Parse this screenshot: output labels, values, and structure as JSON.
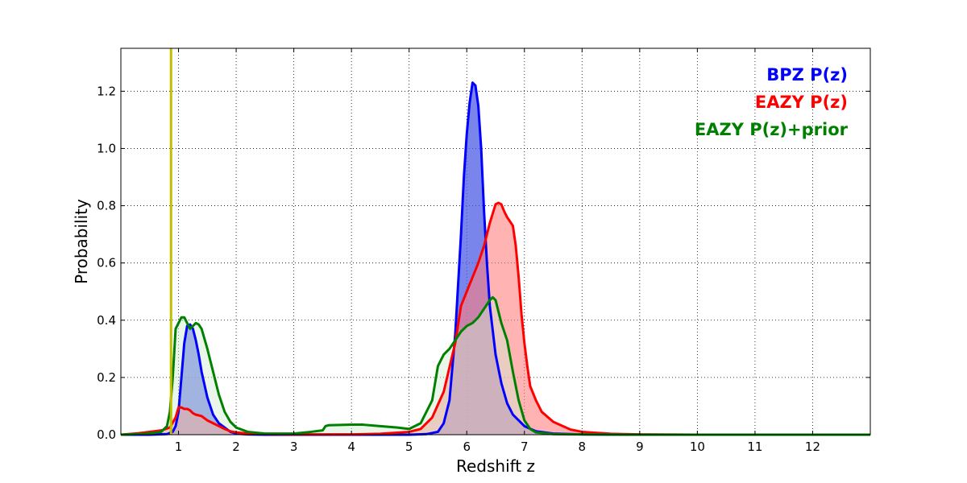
{
  "chart_data": {
    "type": "area",
    "title": "",
    "xlabel": "Redshift z",
    "ylabel": "Probability",
    "xlim": [
      0,
      13
    ],
    "ylim": [
      0,
      1.35
    ],
    "grid": true,
    "legend_position": "top-right",
    "x_ticks": [
      {
        "value": 1,
        "label": "1"
      },
      {
        "value": 2,
        "label": "2"
      },
      {
        "value": 3,
        "label": "3"
      },
      {
        "value": 4,
        "label": "4"
      },
      {
        "value": 5,
        "label": "5"
      },
      {
        "value": 6,
        "label": "6"
      },
      {
        "value": 7,
        "label": "7"
      },
      {
        "value": 8,
        "label": "8"
      },
      {
        "value": 9,
        "label": "9"
      },
      {
        "value": 10,
        "label": "10"
      },
      {
        "value": 11,
        "label": "11"
      },
      {
        "value": 12,
        "label": "12"
      }
    ],
    "y_ticks": [
      {
        "value": 0.0,
        "label": "0.0"
      },
      {
        "value": 0.2,
        "label": "0.2"
      },
      {
        "value": 0.4,
        "label": "0.4"
      },
      {
        "value": 0.6,
        "label": "0.6"
      },
      {
        "value": 0.8,
        "label": "0.8"
      },
      {
        "value": 1.0,
        "label": "1.0"
      },
      {
        "value": 1.2,
        "label": "1.2"
      }
    ],
    "vertical_line": {
      "x": 0.87,
      "color": "#bfbf00"
    },
    "series": [
      {
        "name": "BPZ P(z)",
        "color": "#0000ff",
        "fill": "#4d5ce6",
        "fill_opacity": 0.75,
        "x": [
          0,
          0.5,
          0.8,
          0.9,
          0.95,
          1.0,
          1.05,
          1.1,
          1.15,
          1.2,
          1.25,
          1.3,
          1.35,
          1.4,
          1.5,
          1.6,
          1.7,
          1.8,
          1.9,
          2.0,
          2.2,
          2.5,
          3.0,
          4.0,
          5.0,
          5.3,
          5.5,
          5.6,
          5.7,
          5.8,
          5.9,
          5.95,
          6.0,
          6.05,
          6.1,
          6.15,
          6.2,
          6.25,
          6.3,
          6.35,
          6.4,
          6.5,
          6.6,
          6.7,
          6.8,
          7.0,
          7.2,
          7.5,
          8.0,
          9.0,
          10.0,
          11.0,
          12.0,
          13.0
        ],
        "y": [
          0,
          0,
          0.002,
          0.01,
          0.03,
          0.08,
          0.2,
          0.32,
          0.38,
          0.385,
          0.37,
          0.33,
          0.28,
          0.22,
          0.13,
          0.07,
          0.04,
          0.025,
          0.01,
          0.004,
          0.001,
          0,
          0,
          0,
          0,
          0.002,
          0.01,
          0.04,
          0.12,
          0.35,
          0.7,
          0.9,
          1.05,
          1.16,
          1.23,
          1.22,
          1.15,
          1.0,
          0.78,
          0.6,
          0.45,
          0.28,
          0.18,
          0.11,
          0.07,
          0.03,
          0.012,
          0.004,
          0.001,
          0,
          0,
          0,
          0,
          0
        ]
      },
      {
        "name": "EAZY P(z)",
        "color": "#ff0000",
        "fill": "#ff8080",
        "fill_opacity": 0.6,
        "x": [
          0,
          0.3,
          0.5,
          0.7,
          0.85,
          0.95,
          1.0,
          1.05,
          1.1,
          1.15,
          1.2,
          1.25,
          1.3,
          1.4,
          1.5,
          1.6,
          1.7,
          1.8,
          1.9,
          2.0,
          2.2,
          2.5,
          3.0,
          4.0,
          4.5,
          5.0,
          5.2,
          5.4,
          5.6,
          5.8,
          5.9,
          6.0,
          6.1,
          6.2,
          6.3,
          6.4,
          6.5,
          6.55,
          6.6,
          6.65,
          6.7,
          6.8,
          6.85,
          6.9,
          6.95,
          7.0,
          7.05,
          7.1,
          7.2,
          7.3,
          7.5,
          7.8,
          8.0,
          8.5,
          9.0,
          10.0,
          11.0,
          12.0,
          13.0
        ],
        "y": [
          0,
          0.005,
          0.01,
          0.015,
          0.025,
          0.06,
          0.095,
          0.095,
          0.09,
          0.09,
          0.085,
          0.075,
          0.07,
          0.065,
          0.05,
          0.04,
          0.03,
          0.02,
          0.012,
          0.008,
          0.004,
          0.002,
          0.001,
          0.001,
          0.003,
          0.01,
          0.02,
          0.06,
          0.15,
          0.32,
          0.45,
          0.5,
          0.55,
          0.6,
          0.66,
          0.74,
          0.805,
          0.81,
          0.805,
          0.78,
          0.76,
          0.73,
          0.66,
          0.55,
          0.42,
          0.32,
          0.24,
          0.17,
          0.12,
          0.08,
          0.045,
          0.018,
          0.01,
          0.003,
          0.001,
          0,
          0,
          0,
          0
        ]
      },
      {
        "name": "EAZY P(z)+prior",
        "color": "#008000",
        "fill": "#d0ead0",
        "fill_opacity": 0.45,
        "x": [
          0,
          0.3,
          0.5,
          0.7,
          0.8,
          0.85,
          0.9,
          0.95,
          1.0,
          1.05,
          1.1,
          1.15,
          1.2,
          1.25,
          1.3,
          1.35,
          1.4,
          1.5,
          1.6,
          1.7,
          1.8,
          1.9,
          2.0,
          2.2,
          2.5,
          3.0,
          3.3,
          3.5,
          3.55,
          3.6,
          4.0,
          4.2,
          4.5,
          4.8,
          5.0,
          5.2,
          5.4,
          5.5,
          5.6,
          5.7,
          5.8,
          5.9,
          6.0,
          6.1,
          6.2,
          6.3,
          6.4,
          6.45,
          6.5,
          6.55,
          6.6,
          6.7,
          6.8,
          6.9,
          7.0,
          7.1,
          7.2,
          7.5,
          8.0,
          9.0,
          10.0,
          11.0,
          12.0,
          13.0
        ],
        "y": [
          0,
          0.002,
          0.005,
          0.01,
          0.03,
          0.08,
          0.2,
          0.37,
          0.39,
          0.41,
          0.41,
          0.39,
          0.37,
          0.38,
          0.39,
          0.385,
          0.37,
          0.3,
          0.22,
          0.14,
          0.08,
          0.045,
          0.025,
          0.01,
          0.004,
          0.004,
          0.01,
          0.015,
          0.03,
          0.033,
          0.035,
          0.035,
          0.03,
          0.025,
          0.02,
          0.04,
          0.12,
          0.24,
          0.28,
          0.3,
          0.33,
          0.36,
          0.38,
          0.39,
          0.41,
          0.44,
          0.47,
          0.48,
          0.47,
          0.43,
          0.39,
          0.33,
          0.22,
          0.12,
          0.05,
          0.02,
          0.008,
          0.002,
          0.001,
          0,
          0,
          0,
          0,
          0
        ]
      }
    ]
  }
}
